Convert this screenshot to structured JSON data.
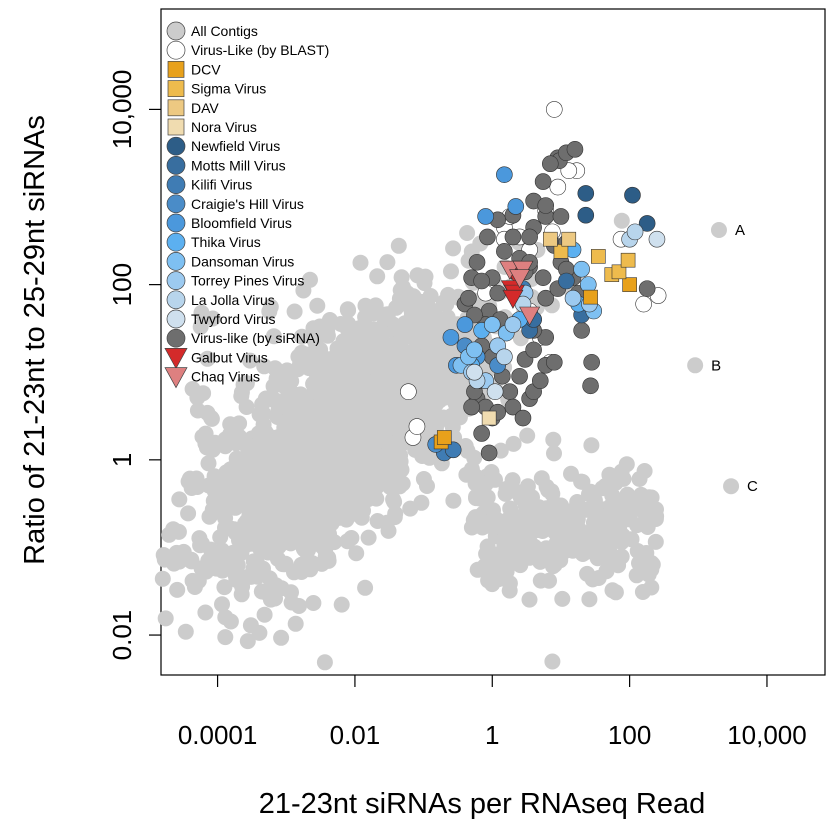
{
  "chart_data": {
    "type": "scatter",
    "xlabel": "21-23nt siRNAs per RNAseq Read",
    "ylabel": "Ratio of 21-23nt to 25-29nt siRNAs",
    "x_scale": "log",
    "y_scale": "log",
    "xlim": [
      1.5e-05,
      70000
    ],
    "ylim": [
      0.0035,
      140000
    ],
    "x_ticks": [
      0.0001,
      0.01,
      1,
      100,
      10000
    ],
    "x_tick_labels": [
      "0.0001",
      "0.01",
      "1",
      "100",
      "10,000"
    ],
    "y_ticks": [
      0.01,
      1,
      100,
      10000
    ],
    "y_tick_labels": [
      "0.01",
      "1",
      "100",
      "10,000"
    ],
    "grid": false,
    "legend_position": "top-left",
    "legend": [
      {
        "label": "All Contigs",
        "color": "#cccccc",
        "marker": "circle"
      },
      {
        "label": "Virus-Like (by BLAST)",
        "color": "#ffffff",
        "marker": "circle"
      },
      {
        "label": "DCV",
        "color": "#e8a11b",
        "marker": "square"
      },
      {
        "label": "Sigma Virus",
        "color": "#eebb4d",
        "marker": "square"
      },
      {
        "label": "DAV",
        "color": "#edc982",
        "marker": "square"
      },
      {
        "label": "Nora Virus",
        "color": "#f0dcb0",
        "marker": "square"
      },
      {
        "label": "Newfield Virus",
        "color": "#2d5d87",
        "marker": "circle"
      },
      {
        "label": "Motts Mill Virus",
        "color": "#386e9f",
        "marker": "circle"
      },
      {
        "label": "Kilifi Virus",
        "color": "#3f7cb4",
        "marker": "circle"
      },
      {
        "label": "Craigie's Hill Virus",
        "color": "#4a8cc8",
        "marker": "circle"
      },
      {
        "label": "Bloomfield Virus",
        "color": "#4b98dc",
        "marker": "circle"
      },
      {
        "label": "Thika Virus",
        "color": "#5cb0f0",
        "marker": "circle"
      },
      {
        "label": "Dansoman Virus",
        "color": "#7ec0f2",
        "marker": "circle"
      },
      {
        "label": "Torrey Pines Virus",
        "color": "#9ccaf0",
        "marker": "circle"
      },
      {
        "label": "La Jolla Virus",
        "color": "#b8d5ec",
        "marker": "circle"
      },
      {
        "label": "Twyford Virus",
        "color": "#cfe0ee",
        "marker": "circle"
      },
      {
        "label": "Virus-like (by siRNA)",
        "color": "#6e6e6e",
        "marker": "circle"
      },
      {
        "label": "Galbut Virus",
        "color": "#d42a2a",
        "marker": "triangle-down"
      },
      {
        "label": "Chaq Virus",
        "color": "#de8080",
        "marker": "triangle-down"
      }
    ],
    "annotations": [
      {
        "label": "A",
        "x": 2000,
        "y": 420
      },
      {
        "label": "B",
        "x": 900,
        "y": 12
      },
      {
        "label": "C",
        "x": 3000,
        "y": 0.5
      }
    ],
    "series": [
      {
        "name": "DCV",
        "points": [
          [
            0.18,
            1.6
          ],
          [
            0.2,
            1.8
          ],
          [
            27,
            72
          ],
          [
            100,
            100
          ]
        ]
      },
      {
        "name": "Sigma Virus",
        "points": [
          [
            10,
            240
          ],
          [
            35,
            210
          ],
          [
            55,
            130
          ],
          [
            70,
            140
          ],
          [
            95,
            190
          ]
        ]
      },
      {
        "name": "DAV",
        "points": [
          [
            7,
            330
          ],
          [
            13,
            330
          ]
        ]
      },
      {
        "name": "Nora Virus",
        "points": [
          [
            0.9,
            3
          ]
        ]
      },
      {
        "name": "Newfield Virus",
        "points": [
          [
            23,
            1100
          ],
          [
            23,
            620
          ],
          [
            110,
            1050
          ],
          [
            180,
            500
          ]
        ]
      },
      {
        "name": "Motts Mill Virus",
        "points": [
          [
            3.5,
            30
          ],
          [
            12,
            110
          ],
          [
            4,
            40
          ],
          [
            20,
            45
          ]
        ]
      },
      {
        "name": "Kilifi Virus",
        "points": [
          [
            2.2,
            140
          ],
          [
            2.8,
            90
          ],
          [
            0.2,
            1.2
          ],
          [
            0.27,
            1.3
          ]
        ]
      },
      {
        "name": "Craigie's Hill Virus",
        "points": [
          [
            0.4,
            20
          ],
          [
            1.2,
            12
          ],
          [
            0.15,
            1.5
          ]
        ]
      },
      {
        "name": "Bloomfield Virus",
        "points": [
          [
            1.5,
            1800
          ],
          [
            0.8,
            600
          ],
          [
            2.2,
            780
          ],
          [
            0.25,
            25
          ],
          [
            0.3,
            12
          ],
          [
            0.6,
            15
          ],
          [
            0.4,
            35
          ]
        ]
      },
      {
        "name": "Thika Virus",
        "points": [
          [
            2.5,
            40
          ],
          [
            0.5,
            12
          ],
          [
            0.7,
            30
          ],
          [
            15,
            250
          ],
          [
            18,
            60
          ]
        ]
      },
      {
        "name": "Dansoman Virus",
        "points": [
          [
            0.35,
            12
          ],
          [
            0.45,
            15
          ],
          [
            0.55,
            18
          ],
          [
            1,
            35
          ],
          [
            1.6,
            28
          ],
          [
            30,
            50
          ],
          [
            20,
            150
          ],
          [
            25,
            100
          ]
        ]
      },
      {
        "name": "Torrey Pines Virus",
        "points": [
          [
            0.5,
            10
          ],
          [
            0.8,
            8
          ],
          [
            1.2,
            20
          ],
          [
            2,
            35
          ],
          [
            3,
            80
          ],
          [
            15,
            70
          ],
          [
            26,
            60
          ]
        ]
      },
      {
        "name": "La Jolla Virus",
        "points": [
          [
            0.6,
            8
          ],
          [
            1.5,
            15
          ],
          [
            2.8,
            60
          ],
          [
            100,
            330
          ],
          [
            120,
            400
          ]
        ]
      },
      {
        "name": "Twyford Virus",
        "points": [
          [
            0.55,
            10
          ],
          [
            1.1,
            6
          ],
          [
            250,
            330
          ]
        ]
      },
      {
        "name": "Virus-Like (by BLAST)",
        "points": [
          [
            8,
            10000
          ],
          [
            17,
            2000
          ],
          [
            13,
            2000
          ],
          [
            9,
            1300
          ],
          [
            6,
            700
          ],
          [
            1.5,
            450
          ],
          [
            2.5,
            350
          ],
          [
            3.5,
            250
          ],
          [
            7.5,
            400
          ],
          [
            160,
            60
          ],
          [
            260,
            75
          ],
          [
            0.07,
            1.8
          ],
          [
            0.08,
            2.4
          ],
          [
            0.06,
            6
          ],
          [
            0.9,
            90
          ],
          [
            5,
            25
          ],
          [
            7,
            13
          ],
          [
            3.5,
            50
          ],
          [
            4,
            40
          ],
          [
            1.8,
            600
          ],
          [
            1.5,
            330
          ],
          [
            75,
            330
          ],
          [
            0.8,
            80
          ]
        ]
      },
      {
        "name": "Virus-like (by siRNA)",
        "points": [
          [
            9,
            2800
          ],
          [
            9.5,
            2600
          ],
          [
            12,
            3200
          ],
          [
            16,
            3500
          ],
          [
            7,
            2400
          ],
          [
            5.5,
            1500
          ],
          [
            4,
            900
          ],
          [
            6,
            600
          ],
          [
            10,
            600
          ],
          [
            4,
            450
          ],
          [
            3.5,
            350
          ],
          [
            8,
            280
          ],
          [
            12,
            300
          ],
          [
            2.5,
            200
          ],
          [
            3.5,
            160
          ],
          [
            5.5,
            120
          ],
          [
            2,
            350
          ],
          [
            1.5,
            240
          ],
          [
            1,
            120
          ],
          [
            1.2,
            80
          ],
          [
            0.9,
            50
          ],
          [
            1.3,
            40
          ],
          [
            0.8,
            35
          ],
          [
            0.7,
            20
          ],
          [
            1,
            15
          ],
          [
            1.4,
            9
          ],
          [
            1.8,
            6
          ],
          [
            2.5,
            9
          ],
          [
            3,
            14
          ],
          [
            4,
            18
          ],
          [
            6,
            12
          ],
          [
            8,
            13
          ],
          [
            0.6,
            5
          ],
          [
            0.8,
            4
          ],
          [
            1,
            3
          ],
          [
            1.2,
            3.5
          ],
          [
            0.5,
            4
          ],
          [
            0.55,
            6
          ],
          [
            0.65,
            8
          ],
          [
            2,
            4
          ],
          [
            2.8,
            3
          ],
          [
            3.5,
            5
          ],
          [
            4,
            6
          ],
          [
            5,
            8
          ],
          [
            6,
            25
          ],
          [
            4,
            30
          ],
          [
            6,
            70
          ],
          [
            9,
            90
          ],
          [
            15,
            120
          ],
          [
            180,
            90
          ],
          [
            28,
            13
          ],
          [
            27,
            7
          ],
          [
            0.7,
            2
          ],
          [
            0.9,
            1.2
          ],
          [
            0.85,
            350
          ],
          [
            1.2,
            550
          ],
          [
            2,
            620
          ],
          [
            6,
            800
          ],
          [
            0.6,
            180
          ],
          [
            0.5,
            120
          ],
          [
            0.4,
            60
          ],
          [
            0.45,
            70
          ],
          [
            0.7,
            110
          ],
          [
            3,
            140
          ],
          [
            3.5,
            180
          ],
          [
            10,
            180
          ],
          [
            12,
            150
          ],
          [
            18,
            80
          ],
          [
            20,
            30
          ],
          [
            0.55,
            45
          ]
        ]
      },
      {
        "name": "Galbut Virus",
        "points": [
          [
            1.9,
            150
          ],
          [
            2.3,
            120
          ],
          [
            1.9,
            90
          ],
          [
            2.1,
            80
          ],
          [
            2,
            70
          ]
        ]
      },
      {
        "name": "Chaq Virus",
        "points": [
          [
            1.8,
            150
          ],
          [
            2.8,
            150
          ],
          [
            2.5,
            120
          ],
          [
            3.5,
            45
          ]
        ]
      },
      {
        "name": "All Contigs",
        "points": []
      }
    ]
  }
}
